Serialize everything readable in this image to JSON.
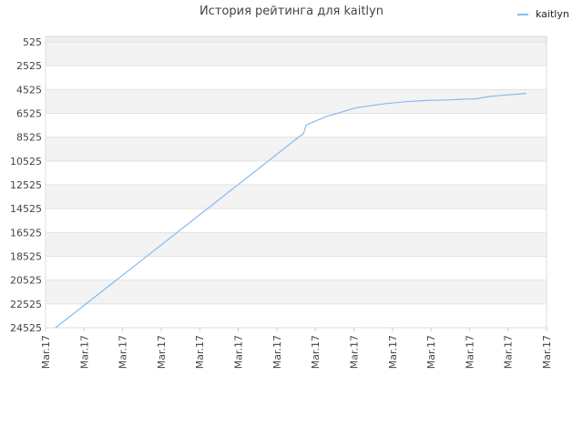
{
  "chart_data": {
    "type": "line",
    "title": "История рейтинга для kaitlyn",
    "xlabel": "",
    "ylabel": "",
    "y_inverted": true,
    "ylim": [
      525,
      24525
    ],
    "y_ticks": [
      525,
      2525,
      4525,
      6525,
      8525,
      10525,
      12525,
      14525,
      16525,
      18525,
      20525,
      22525,
      24525
    ],
    "x_ticks": [
      "Mar.17",
      "Mar.17",
      "Mar.17",
      "Mar.17",
      "Mar.17",
      "Mar.17",
      "Mar.17",
      "Mar.17",
      "Mar.17",
      "Mar.17",
      "Mar.17",
      "Mar.17",
      "Mar.17",
      "Mar.17"
    ],
    "grid": true,
    "legend_position": "top-right",
    "series": [
      {
        "name": "kaitlyn",
        "color": "#88bbee",
        "x": [
          0.02,
          0.515,
          0.52,
          0.56,
          0.62,
          0.68,
          0.72,
          0.76,
          0.8,
          0.83,
          0.86,
          0.88,
          0.9,
          0.96
        ],
        "y": [
          24525,
          8200,
          7500,
          6800,
          6050,
          5700,
          5550,
          5450,
          5400,
          5350,
          5300,
          5150,
          5050,
          4850
        ]
      }
    ]
  }
}
